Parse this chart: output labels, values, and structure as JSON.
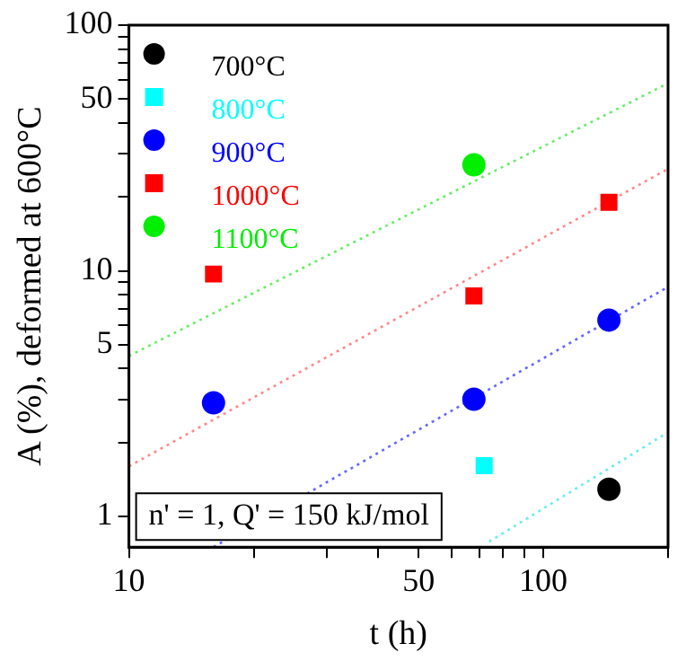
{
  "chart_data": {
    "type": "scatter",
    "xlabel": "t (h)",
    "ylabel": "A (%), deformed at 600°C",
    "log": "xy",
    "grid": false,
    "legend": "top left",
    "xlim": [
      10,
      200
    ],
    "ylim": [
      0.75,
      100
    ],
    "xticks": [
      10,
      {
        "value": 20,
        "label": null
      },
      {
        "value": 30,
        "label": null
      },
      {
        "value": 40,
        "label": null
      },
      50,
      {
        "value": 60,
        "label": null
      },
      {
        "value": 70,
        "label": null
      },
      {
        "value": 80,
        "label": null
      },
      {
        "value": 90,
        "label": null
      },
      100,
      {
        "value": 200,
        "label": null
      }
    ],
    "yticks": [
      1,
      {
        "value": 2,
        "label": null
      },
      {
        "value": 3,
        "label": null
      },
      {
        "value": 4,
        "label": null
      },
      5,
      {
        "value": 6,
        "label": null
      },
      {
        "value": 7,
        "label": null
      },
      {
        "value": 8,
        "label": null
      },
      {
        "value": 9,
        "label": null
      },
      10,
      {
        "value": 20,
        "label": null
      },
      {
        "value": 30,
        "label": null
      },
      {
        "value": 40,
        "label": null
      },
      50,
      {
        "value": 60,
        "label": null
      },
      {
        "value": 70,
        "label": null
      },
      {
        "value": 80,
        "label": null
      },
      {
        "value": 90,
        "label": null
      },
      100
    ],
    "annotations": [
      "n' = 1, Q' = 150 kJ/mol"
    ],
    "series": [
      {
        "name": "700°C",
        "type": "scatter",
        "marker": "circle",
        "color": "#000000",
        "x": [
          144
        ],
        "values": [
          1.29
        ]
      },
      {
        "name": "800°C",
        "type": "scatter",
        "marker": "square",
        "color": "#00ffff",
        "x": [
          72
        ],
        "values": [
          1.61
        ]
      },
      {
        "name": "900°C",
        "type": "scatter",
        "marker": "circle",
        "color": "#0000ff",
        "x": [
          16,
          68,
          144
        ],
        "values": [
          2.9,
          3.0,
          6.3
        ]
      },
      {
        "name": "1000°C",
        "type": "scatter",
        "marker": "square",
        "color": "#ff0000",
        "x": [
          16,
          68,
          144
        ],
        "values": [
          9.7,
          7.9,
          19
        ]
      },
      {
        "name": "1100°C",
        "type": "scatter",
        "marker": "circle",
        "color": "#00ee00",
        "x": [
          68
        ],
        "values": [
          27
        ]
      },
      {
        "type": "line",
        "marker": "none",
        "line_style": "dotted",
        "color": "#66eeee",
        "x": [
          74,
          200
        ],
        "values": [
          0.79,
          2.2
        ]
      },
      {
        "type": "line",
        "marker": "none",
        "line_style": "dotted",
        "color": "#6666ff",
        "x": [
          16,
          200
        ],
        "values": [
          0.75,
          8.6
        ]
      },
      {
        "type": "line",
        "marker": "none",
        "line_style": "dotted",
        "color": "#ff8888",
        "x": [
          10,
          200
        ],
        "values": [
          1.6,
          26
        ]
      },
      {
        "type": "line",
        "marker": "none",
        "line_style": "dotted",
        "color": "#66ee66",
        "x": [
          10,
          200
        ],
        "values": [
          4.5,
          58
        ]
      }
    ]
  }
}
